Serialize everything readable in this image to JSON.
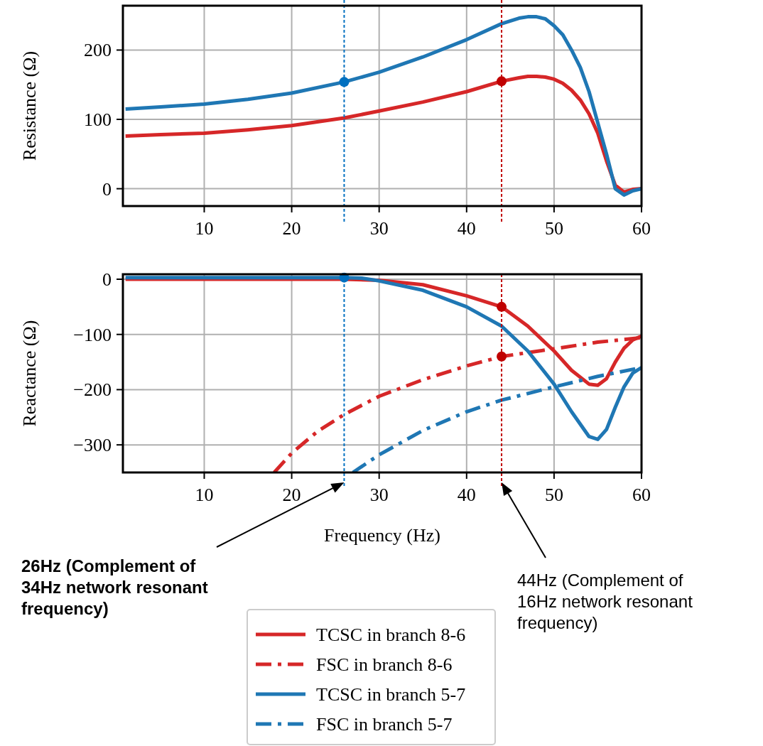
{
  "chart_data": [
    {
      "type": "line",
      "ylabel": "Resistance (Ω)",
      "xlim": [
        0.7,
        60
      ],
      "xticks": [
        10,
        20,
        30,
        40,
        50,
        60
      ],
      "ylim": [
        -25,
        264
      ],
      "yticks": [
        0,
        100,
        200
      ],
      "grid": true,
      "legend": false,
      "marker": "none",
      "series": [
        {
          "color": "#d62728",
          "line_style": "solid",
          "x": [
            1,
            5,
            10,
            15,
            20,
            26,
            30,
            35,
            40,
            44,
            46,
            47,
            48,
            49,
            50,
            51,
            52,
            53,
            54,
            55,
            56,
            57,
            58,
            59,
            60
          ],
          "values": [
            76,
            78,
            80,
            85,
            91,
            102,
            112,
            125,
            140,
            155,
            160,
            162,
            162,
            161,
            158,
            152,
            142,
            128,
            108,
            80,
            40,
            5,
            -5,
            -1,
            0
          ]
        },
        {
          "color": "#1f77b4",
          "line_style": "solid",
          "x": [
            1,
            5,
            10,
            15,
            20,
            26,
            30,
            35,
            40,
            44,
            46,
            47,
            48,
            49,
            50,
            51,
            52,
            53,
            54,
            55,
            56,
            57,
            58,
            59,
            60
          ],
          "values": [
            115,
            118,
            122,
            129,
            138,
            154,
            168,
            190,
            215,
            238,
            246,
            248,
            248,
            245,
            235,
            222,
            200,
            175,
            140,
            95,
            50,
            0,
            -9,
            -3,
            0
          ]
        },
        {
          "type": "scatter",
          "color": "#0070c0",
          "marker": "circle",
          "x": [
            26
          ],
          "values": [
            154
          ]
        },
        {
          "type": "scatter",
          "color": "#c00000",
          "marker": "circle",
          "x": [
            44
          ],
          "values": [
            155
          ]
        }
      ],
      "ref_lines": [
        {
          "axis": "x",
          "value": 26,
          "color": "#0070c0",
          "line_style": "dashed"
        },
        {
          "axis": "x",
          "value": 44,
          "color": "#c00000",
          "line_style": "dashed"
        }
      ]
    },
    {
      "type": "line",
      "xlabel": "Frequency (Hz)",
      "ylabel": "Reactance (Ω)",
      "xlim": [
        0.7,
        60
      ],
      "xticks": [
        10,
        20,
        30,
        40,
        50,
        60
      ],
      "ylim": [
        -350,
        9
      ],
      "yticks": [
        {
          "value": 0,
          "label": "0"
        },
        {
          "value": -100,
          "label": "−100"
        },
        {
          "value": -200,
          "label": "−200"
        },
        {
          "value": -300,
          "label": "−300"
        }
      ],
      "grid": true,
      "legend": "bottom",
      "marker": "none",
      "series": [
        {
          "name": "TCSC in branch 8-6",
          "color": "#d62728",
          "line_style": "solid",
          "x": [
            1,
            10,
            20,
            26,
            30,
            35,
            40,
            44,
            47,
            50,
            52,
            54,
            55,
            56,
            57,
            58,
            59,
            60
          ],
          "values": [
            0,
            0,
            0,
            0,
            -2,
            -10,
            -30,
            -50,
            -85,
            -130,
            -165,
            -190,
            -192,
            -180,
            -150,
            -125,
            -110,
            -103
          ]
        },
        {
          "name": "FSC in branch 8-6",
          "color": "#d62728",
          "line_style": "dashdot",
          "x": [
            18,
            20,
            23,
            26,
            30,
            35,
            40,
            44,
            50,
            55,
            60
          ],
          "values": [
            -350,
            -315,
            -275,
            -245,
            -212,
            -182,
            -157,
            -140,
            -126,
            -114,
            -106
          ]
        },
        {
          "name": "TCSC in branch 5-7",
          "color": "#1f77b4",
          "line_style": "solid",
          "x": [
            1,
            10,
            20,
            26,
            28,
            30,
            35,
            40,
            44,
            47,
            50,
            52,
            54,
            55,
            56,
            57,
            58,
            59,
            60
          ],
          "values": [
            3,
            3,
            3,
            3,
            2,
            -3,
            -20,
            -50,
            -85,
            -130,
            -190,
            -240,
            -285,
            -290,
            -272,
            -232,
            -195,
            -170,
            -160
          ]
        },
        {
          "name": "FSC in branch 5-7",
          "color": "#1f77b4",
          "line_style": "dashdot",
          "x": [
            27,
            30,
            35,
            40,
            44,
            50,
            55,
            60
          ],
          "values": [
            -350,
            -318,
            -274,
            -240,
            -219,
            -195,
            -176,
            -160
          ]
        },
        {
          "type": "scatter",
          "color": "#0070c0",
          "marker": "circle",
          "x": [
            26
          ],
          "values": [
            3
          ]
        },
        {
          "type": "scatter",
          "color": "#c00000",
          "marker": "circle",
          "x": [
            44,
            44
          ],
          "values": [
            -50,
            -140
          ]
        }
      ],
      "ref_lines": [
        {
          "axis": "x",
          "value": 26,
          "color": "#0070c0",
          "line_style": "dashed"
        },
        {
          "axis": "x",
          "value": 44,
          "color": "#c00000",
          "line_style": "dashed"
        }
      ],
      "annotations": [
        "26Hz (Complement of 34Hz network resonant frequency)",
        "44Hz (Complement of 16Hz network resonant frequency)"
      ]
    }
  ]
}
